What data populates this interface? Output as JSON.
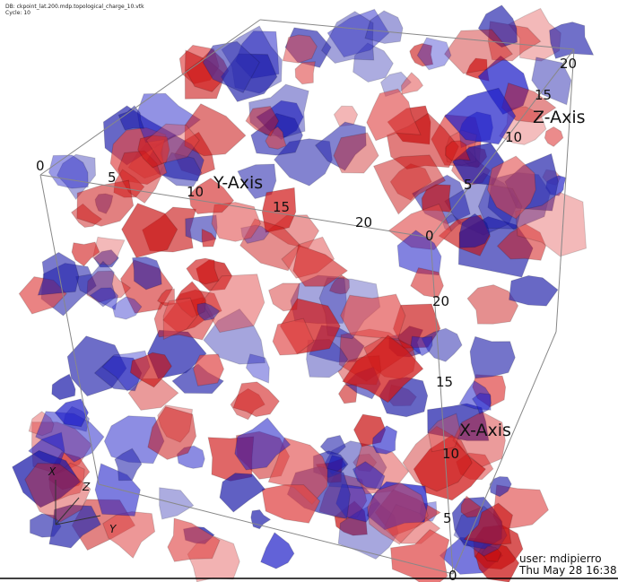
{
  "header": {
    "database": "DB: ckpoint_lat.200.mdp.topological_charge_10.vtk",
    "cycle": "Cycle: 10"
  },
  "axes": {
    "x": {
      "title": "X-Axis",
      "ticks": [
        20,
        15,
        10,
        5,
        0
      ]
    },
    "y": {
      "title": "Y-Axis",
      "ticks": [
        0,
        5,
        10,
        15,
        20
      ]
    },
    "z": {
      "title": "Z-Axis",
      "ticks": [
        20,
        15,
        10,
        5,
        0
      ]
    }
  },
  "triad": {
    "x": "X",
    "y": "Y",
    "z": "Z"
  },
  "footer": {
    "user": "user: mdipierro",
    "date": "Thu May 28 16:38:"
  }
}
